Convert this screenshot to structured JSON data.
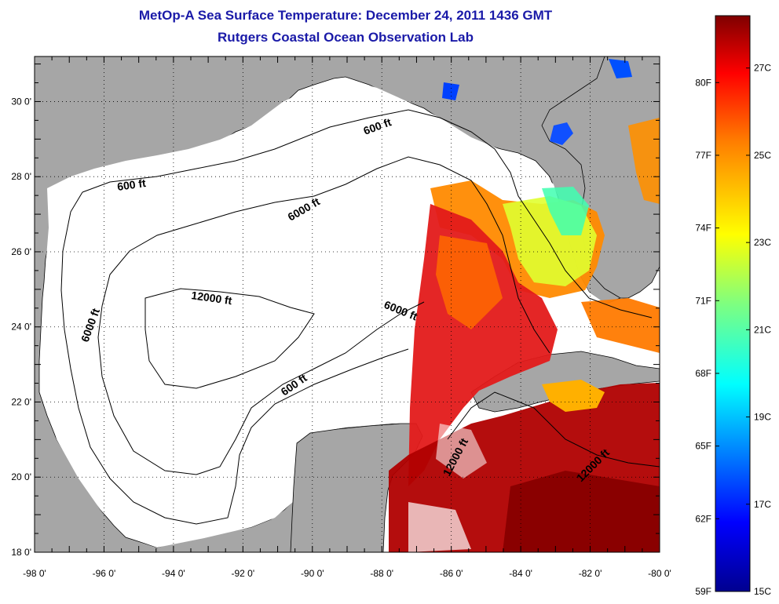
{
  "header": {
    "title": "MetOp-A Sea Surface Temperature:  December 24, 2011 1436 GMT",
    "subtitle": "Rutgers Coastal Ocean Observation Lab"
  },
  "map": {
    "lon_labels": [
      "-98 0'",
      "-96 0'",
      "-94 0'",
      "-92 0'",
      "-90 0'",
      "-88 0'",
      "-86 0'",
      "-84 0'",
      "-82 0'",
      "-80 0'"
    ],
    "lat_labels": [
      "30 0'",
      "28 0'",
      "26 0'",
      "24 0'",
      "22 0'",
      "20 0'",
      "18 0'"
    ],
    "contour_labels": [
      "600 ft",
      "600 ft",
      "6000 ft",
      "12000 ft",
      "6000 ft",
      "6000 ft",
      "600 ft",
      "12000 ft",
      "12000 ft"
    ],
    "colors": {
      "land": "#a6a6a6",
      "ocean_nodata": "#ffffff",
      "grid": "#000000"
    }
  },
  "colorbar": {
    "fahrenheit_labels": [
      "80F",
      "77F",
      "74F",
      "71F",
      "68F",
      "65F",
      "62F",
      "59F"
    ],
    "celsius_labels": [
      "27C",
      "25C",
      "23C",
      "21C",
      "19C",
      "17C",
      "15C"
    ],
    "fahrenheit_values": [
      80,
      77,
      74,
      71,
      68,
      65,
      62,
      59
    ],
    "celsius_values": [
      27,
      25,
      23,
      21,
      19,
      17,
      15
    ],
    "range_c": [
      15,
      28.2
    ],
    "colormap": [
      "#00008f",
      "#0000ff",
      "#007fff",
      "#00ffff",
      "#7fff7f",
      "#ffff00",
      "#ff7f00",
      "#ff0000",
      "#7f0000"
    ]
  }
}
